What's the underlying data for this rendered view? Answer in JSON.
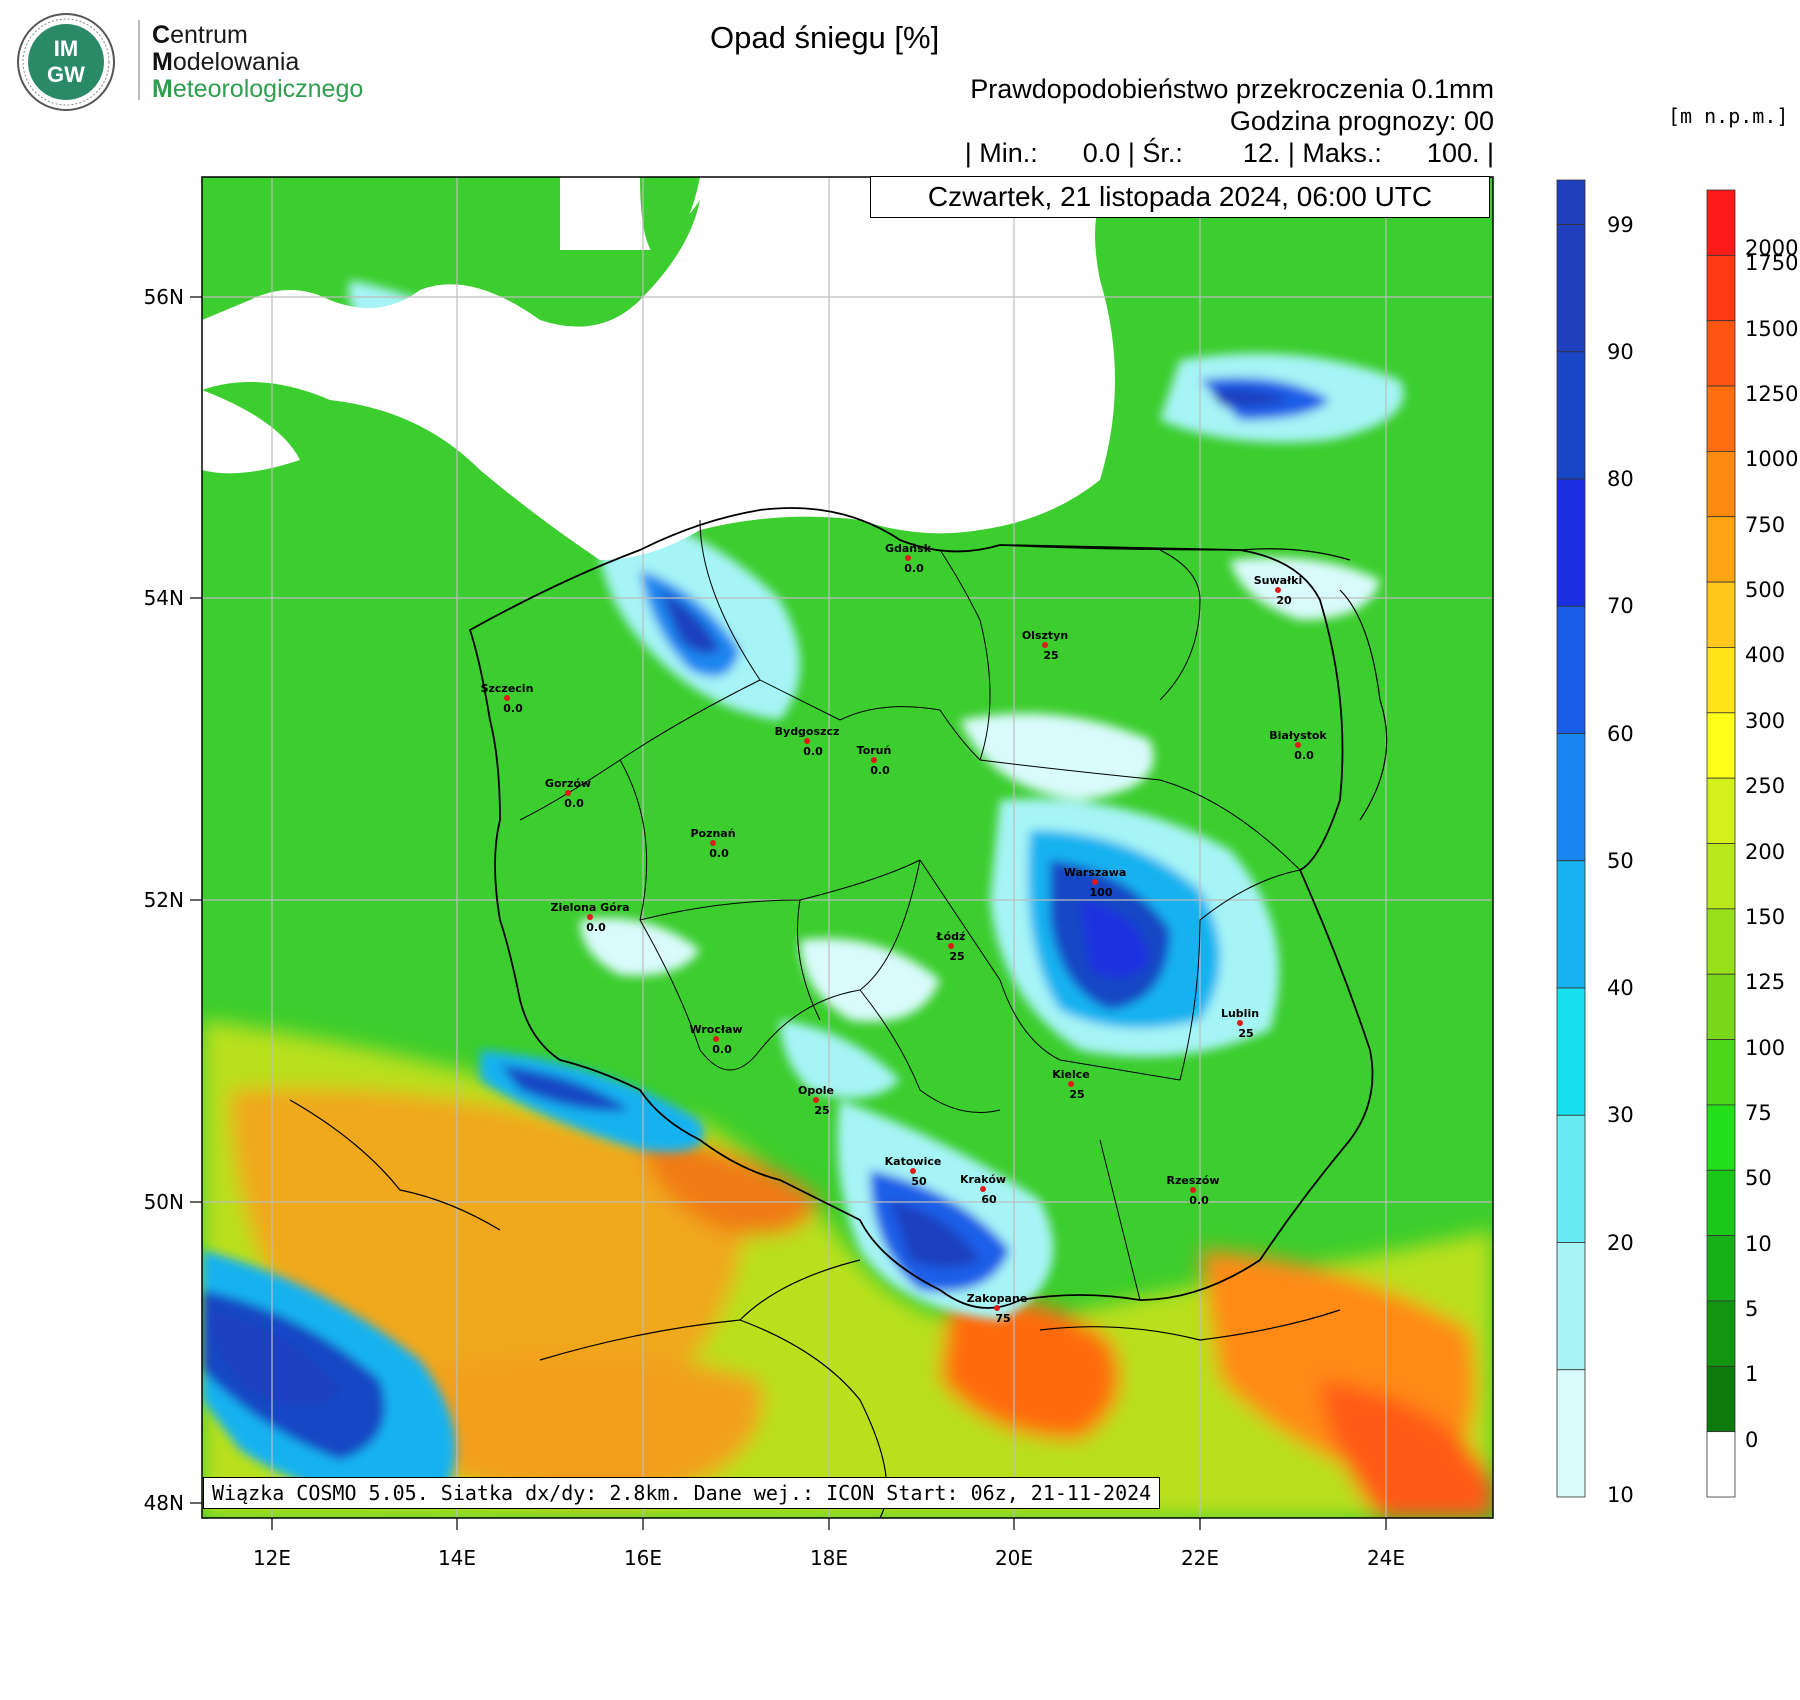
{
  "logo": {
    "badge_top": "IM",
    "badge_bottom": "GW",
    "lines": [
      {
        "initial": "C",
        "rest": "entrum"
      },
      {
        "initial": "M",
        "rest": "odelowania"
      },
      {
        "initial": "M",
        "rest": "eteorologicznego"
      }
    ],
    "color_initial": "#1a1a1a",
    "color_rest": "#2e9e4f",
    "color_rest_line1": "#1a1a1a"
  },
  "title": "Opad śniegu [%]",
  "subtitle_1": "Prawdopodobieństwo przekroczenia 0.1mm",
  "subtitle_2": "Godzina prognozy: 00",
  "stats": "| Min.:      0.0 | Śr.:        12. | Maks.:      100. |",
  "date": "Czwartek, 21 listopada 2024, 06:00 UTC",
  "footer": "Wiązka COSMO 5.05. Siatka dx/dy: 2.8km. Dane wej.: ICON Start: 06z, 21-11-2024",
  "elevation_unit": "[m n.p.m.]",
  "latitudes": [
    "56N",
    "54N",
    "52N",
    "50N",
    "48N"
  ],
  "longitudes": [
    "12E",
    "14E",
    "16E",
    "18E",
    "20E",
    "22E",
    "24E"
  ],
  "snow_scale": {
    "labels": [
      "99",
      "90",
      "80",
      "70",
      "60",
      "50",
      "40",
      "30",
      "20",
      "10"
    ],
    "colors": [
      "#1f3fbf",
      "#1846c4",
      "#1a30e0",
      "#1a5ee8",
      "#1a86f0",
      "#19b2f0",
      "#19e0f0",
      "#66ecf2",
      "#a6f4f6",
      "#d9fbfc"
    ]
  },
  "elevation_scale": {
    "labels": [
      "2000",
      "1750",
      "1500",
      "1250",
      "1000",
      "750",
      "500",
      "400",
      "300",
      "250",
      "200",
      "150",
      "125",
      "100",
      "75",
      "50",
      "10",
      "5",
      "1",
      "0"
    ],
    "colors": [
      "#ff1a1a",
      "#ff3a14",
      "#ff5512",
      "#ff6e10",
      "#ff8a10",
      "#ffa514",
      "#ffc81a",
      "#ffe61a",
      "#ffff1a",
      "#d4f01a",
      "#b8e81a",
      "#9ae01a",
      "#7ad81a",
      "#4cd81a",
      "#22e01a",
      "#1ac81a",
      "#18b018",
      "#129612",
      "#0c7a0c",
      "#ffffff"
    ]
  },
  "cities": [
    {
      "name": "Gdańsk",
      "value": "0.0"
    },
    {
      "name": "Suwałki",
      "value": "20"
    },
    {
      "name": "Olsztyn",
      "value": "25"
    },
    {
      "name": "Szczecin",
      "value": "0.0"
    },
    {
      "name": "Bydgoszcz",
      "value": "0.0"
    },
    {
      "name": "Toruń",
      "value": "0.0"
    },
    {
      "name": "Białystok",
      "value": "0.0"
    },
    {
      "name": "Gorzów",
      "value": "0.0"
    },
    {
      "name": "Poznań",
      "value": "0.0"
    },
    {
      "name": "Warszawa",
      "value": "100"
    },
    {
      "name": "Zielona Góra",
      "value": "0.0"
    },
    {
      "name": "Łódź",
      "value": "25"
    },
    {
      "name": "Lublin",
      "value": "25"
    },
    {
      "name": "Wrocław",
      "value": "0.0"
    },
    {
      "name": "Kielce",
      "value": "25"
    },
    {
      "name": "Opole",
      "value": "25"
    },
    {
      "name": "Katowice",
      "value": "50"
    },
    {
      "name": "Kraków",
      "value": "60"
    },
    {
      "name": "Rzeszów",
      "value": "0.0"
    },
    {
      "name": "Zakopane",
      "value": "75"
    }
  ]
}
